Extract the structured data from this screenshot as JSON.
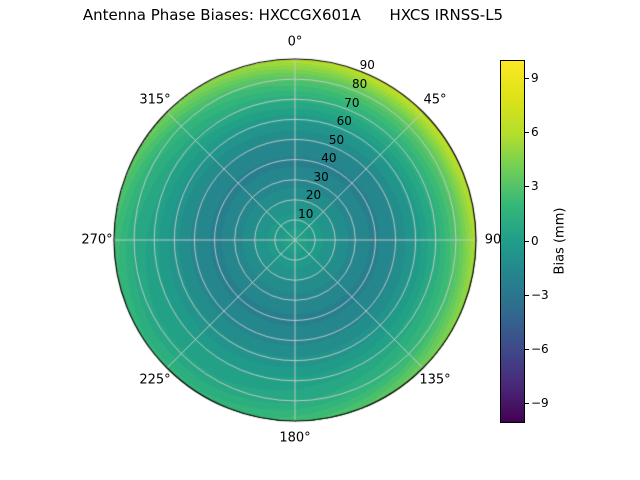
{
  "title": "Antenna Phase Biases: HXCCGX601A      HXCS IRNSS-L5",
  "chart_data": {
    "type": "heatmap",
    "subtype": "polar-contour",
    "title": "Antenna Phase Biases: HXCCGX601A      HXCS IRNSS-L5",
    "grid": true,
    "rmax": 90,
    "radial_ticks": [
      10,
      20,
      30,
      40,
      50,
      60,
      70,
      80,
      90
    ],
    "angles_deg": [
      0,
      45,
      90,
      135,
      180,
      225,
      270,
      315
    ],
    "angle_labels": [
      "0°",
      "45°",
      "90",
      "135°",
      "180°",
      "225°",
      "270°",
      "315°"
    ],
    "azimuths": [
      0,
      30,
      60,
      90,
      120,
      150,
      180,
      210,
      240,
      270,
      300,
      330
    ],
    "zeniths": [
      0,
      10,
      20,
      30,
      40,
      50,
      60,
      70,
      80,
      90
    ],
    "values": [
      [
        0.3,
        0.3,
        0.3,
        0.3,
        0.3,
        0.3,
        0.3,
        0.3,
        0.3,
        0.3,
        0.3,
        0.3
      ],
      [
        -0.2,
        -0.2,
        -0.2,
        -0.2,
        -0.2,
        -0.2,
        -0.2,
        -0.2,
        -0.2,
        -0.2,
        -0.2,
        -0.2
      ],
      [
        -1.0,
        -1.0,
        -1.0,
        -1.0,
        -1.0,
        -1.0,
        -1.0,
        -1.0,
        -1.0,
        -1.0,
        -1.0,
        -1.0
      ],
      [
        -1.8,
        -1.8,
        -1.8,
        -1.8,
        -1.8,
        -1.8,
        -1.8,
        -1.8,
        -1.8,
        -1.8,
        -1.8,
        -1.8
      ],
      [
        -2.1,
        -2.1,
        -2.1,
        -2.1,
        -2.1,
        -2.1,
        -2.1,
        -2.1,
        -2.1,
        -2.1,
        -2.1,
        -2.1
      ],
      [
        -1.5,
        -1.5,
        -1.5,
        -1.5,
        -1.6,
        -1.6,
        -1.7,
        -1.7,
        -1.7,
        -1.7,
        -1.6,
        -1.6
      ],
      [
        -0.4,
        -0.3,
        -0.3,
        -0.4,
        -0.5,
        -0.7,
        -0.8,
        -0.9,
        -0.9,
        -0.8,
        -0.7,
        -0.5
      ],
      [
        1.2,
        1.4,
        1.4,
        1.2,
        0.9,
        0.5,
        0.2,
        0.0,
        0.0,
        0.2,
        0.5,
        0.9
      ],
      [
        3.1,
        3.4,
        3.4,
        3.1,
        2.4,
        1.6,
        0.9,
        0.6,
        0.6,
        0.9,
        1.6,
        2.4
      ],
      [
        6.0,
        6.7,
        6.7,
        6.0,
        4.9,
        3.5,
        2.4,
        1.7,
        1.7,
        2.4,
        3.5,
        4.9
      ]
    ],
    "contour_step": 0.5,
    "colorbar": {
      "label": "Bias (mm)",
      "vmin": -10,
      "vmax": 10,
      "ticks": [
        9,
        6,
        3,
        0,
        -3,
        -6,
        -9
      ],
      "tick_labels": [
        "9",
        "6",
        "3",
        "0",
        "−3",
        "−6",
        "−9"
      ]
    },
    "colormap": {
      "name": "viridis",
      "stops": [
        {
          "t": 0.0,
          "c": "#440154"
        },
        {
          "t": 0.1,
          "c": "#482878"
        },
        {
          "t": 0.2,
          "c": "#3e4989"
        },
        {
          "t": 0.3,
          "c": "#31688e"
        },
        {
          "t": 0.4,
          "c": "#26828e"
        },
        {
          "t": 0.5,
          "c": "#1f9e89"
        },
        {
          "t": 0.6,
          "c": "#35b779"
        },
        {
          "t": 0.7,
          "c": "#6ece58"
        },
        {
          "t": 0.8,
          "c": "#b5de2b"
        },
        {
          "t": 0.9,
          "c": "#dde318"
        },
        {
          "t": 1.0,
          "c": "#fde725"
        }
      ]
    },
    "grid_color": "#cdcdcd",
    "outline_color": "#000000"
  }
}
